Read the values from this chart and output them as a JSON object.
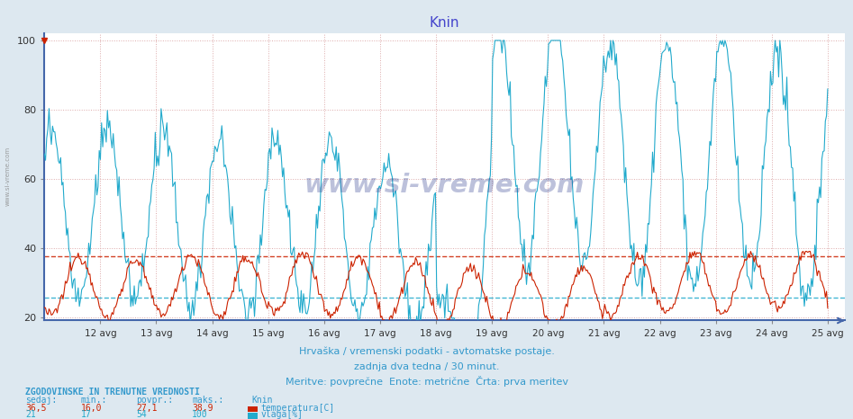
{
  "title": "Knin",
  "title_color": "#4444cc",
  "bg_color": "#dde8f0",
  "plot_bg_color": "#ffffff",
  "xlabel_text1": "Hrvaška / vremenski podatki - avtomatske postaje.",
  "xlabel_text2": "zadnja dva tedna / 30 minut.",
  "xlabel_text3": "Meritve: povprečne  Enote: metrične  Črta: prva meritev",
  "x_tick_days": [
    12,
    13,
    14,
    15,
    16,
    17,
    18,
    19,
    20,
    21,
    22,
    23,
    24,
    25
  ],
  "x_tick_labels": [
    "12 avg",
    "13 avg",
    "14 avg",
    "15 avg",
    "16 avg",
    "17 avg",
    "18 avg",
    "19 avg",
    "20 avg",
    "21 avg",
    "22 avg",
    "23 avg",
    "24 avg",
    "25 avg"
  ],
  "xlim": [
    11.0,
    25.3
  ],
  "ylim": [
    19,
    102
  ],
  "yticks": [
    20,
    40,
    60,
    80,
    100
  ],
  "h_grid_color": "#ddaaaa",
  "v_grid_color": "#aabbcc",
  "temp_color": "#cc2200",
  "humidity_color": "#22aacc",
  "temp_mean": 37.5,
  "humidity_mean": 25.5,
  "watermark": "www.si-vreme.com",
  "watermark_color": "#223388",
  "watermark_alpha": 0.3,
  "left_label": "www.si-vreme.com",
  "bottom_text_color": "#3399cc",
  "table_header_color": "#3399cc",
  "temp_color_table": "#cc2200",
  "humidity_color_table": "#22aacc",
  "n_points": 672
}
